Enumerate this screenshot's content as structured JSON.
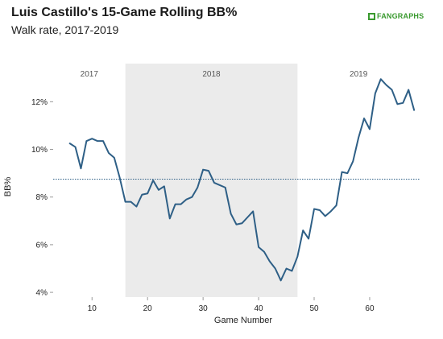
{
  "header": {
    "title": "Luis Castillo's 15-Game Rolling BB%",
    "subtitle": "Walk rate, 2017-2019",
    "logo_text": "FANGRAPHS",
    "logo_color": "#3a9a2f"
  },
  "chart_data": {
    "type": "line",
    "title": "Luis Castillo's 15-Game Rolling BB%",
    "subtitle": "Walk rate, 2017-2019",
    "xlabel": "Game Number",
    "ylabel": "BB%",
    "xlim": [
      3,
      69
    ],
    "ylim": [
      3.8,
      13.6
    ],
    "xticks": [
      10,
      20,
      30,
      40,
      50,
      60
    ],
    "yticks": [
      4,
      6,
      8,
      10,
      12
    ],
    "ytick_labels": [
      "4%",
      "6%",
      "8%",
      "10%",
      "12%"
    ],
    "grid": false,
    "colors": {
      "line": "#2e5f86",
      "reference": "#2e5f86",
      "shade": "#ebebeb"
    },
    "season_regions": [
      {
        "label": "2017",
        "x_start": 3,
        "x_end": 16,
        "shaded": false
      },
      {
        "label": "2018",
        "x_start": 16,
        "x_end": 47,
        "shaded": true
      },
      {
        "label": "2019",
        "x_start": 47,
        "x_end": 69,
        "shaded": false
      }
    ],
    "reference_line": {
      "y": 8.75,
      "style": "dotted"
    },
    "series": [
      {
        "x": [
          6,
          7,
          8,
          9,
          10,
          11,
          12,
          13,
          14,
          15,
          16,
          17,
          18,
          19,
          20,
          21,
          22,
          23,
          24,
          25,
          26,
          27,
          28,
          29,
          30,
          31,
          32,
          33,
          34,
          35,
          36,
          37,
          38,
          39,
          40,
          41,
          42,
          43,
          44,
          45,
          46,
          47,
          48,
          49,
          50,
          51,
          52,
          53,
          54,
          55,
          56,
          57,
          58,
          59,
          60,
          61,
          62,
          63,
          64,
          65,
          66,
          67,
          68
        ],
        "y": [
          10.25,
          10.1,
          9.2,
          10.35,
          10.45,
          10.35,
          10.35,
          9.85,
          9.65,
          8.8,
          7.8,
          7.8,
          7.6,
          8.1,
          8.15,
          8.7,
          8.3,
          8.45,
          7.1,
          7.7,
          7.7,
          7.9,
          8.0,
          8.4,
          9.15,
          9.1,
          8.6,
          8.5,
          8.4,
          7.3,
          6.85,
          6.9,
          7.15,
          7.4,
          5.9,
          5.7,
          5.3,
          5.0,
          4.5,
          5.0,
          4.9,
          5.5,
          6.6,
          6.25,
          7.5,
          7.45,
          7.2,
          7.4,
          7.65,
          9.05,
          9.0,
          9.5,
          10.5,
          11.3,
          10.85,
          12.35,
          12.95,
          12.7,
          12.5,
          11.9,
          11.95,
          12.5,
          11.65
        ]
      }
    ]
  }
}
